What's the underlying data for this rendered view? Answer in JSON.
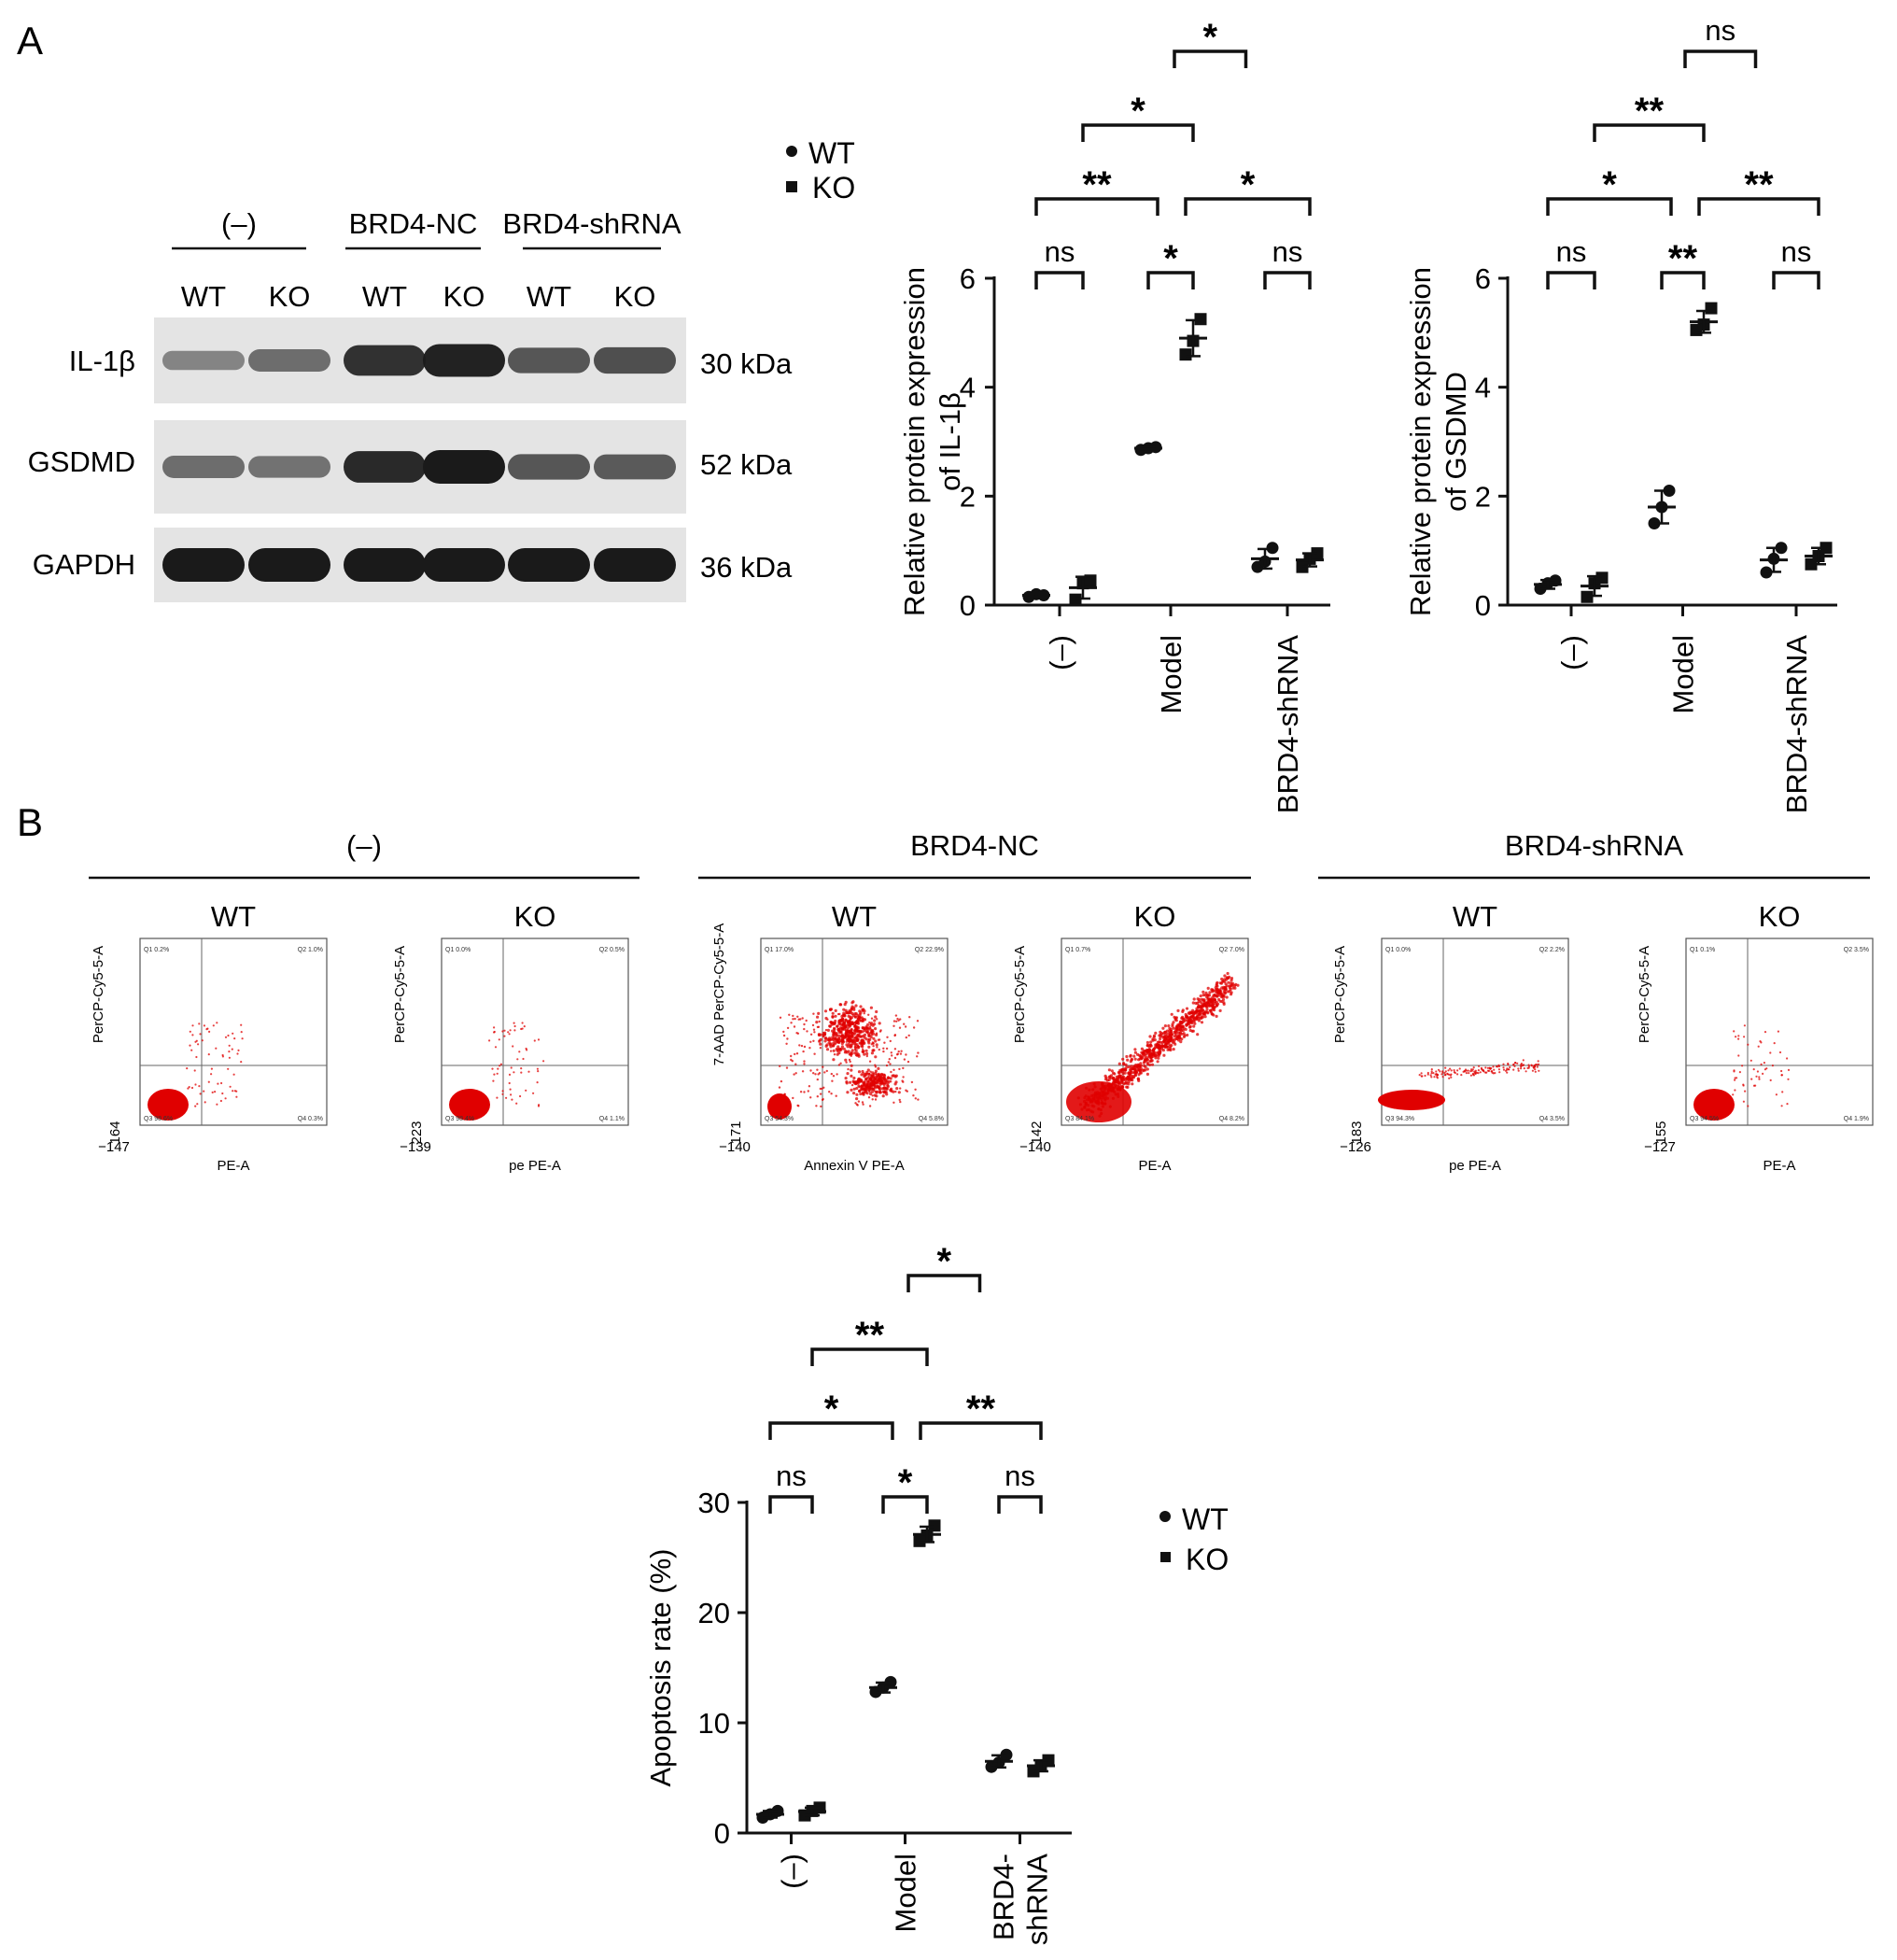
{
  "panel_labels": {
    "a": "A",
    "b": "B"
  },
  "western_blot": {
    "groups": [
      "(–)",
      "BRD4-NC",
      "BRD4-shRNA"
    ],
    "lanes": [
      "WT",
      "KO",
      "WT",
      "KO",
      "WT",
      "KO"
    ],
    "proteins": [
      {
        "name": "IL-1β",
        "kda": "30 kDa",
        "intensity": [
          0.3,
          0.45,
          0.85,
          0.95,
          0.6,
          0.65
        ]
      },
      {
        "name": "GSDMD",
        "kda": "52 kDa",
        "intensity": [
          0.45,
          0.42,
          0.9,
          1.0,
          0.6,
          0.58
        ]
      },
      {
        "name": "GAPDH",
        "kda": "36 kDa",
        "intensity": [
          1.0,
          1.0,
          1.0,
          1.0,
          1.0,
          1.0
        ]
      }
    ]
  },
  "legend_a": {
    "wt": "WT",
    "ko": "KO"
  },
  "legend_b": {
    "wt": "WT",
    "ko": "KO"
  },
  "chart_data": [
    {
      "type": "scatter",
      "title": "",
      "ylabel": "Relative protein expression of IL-1β",
      "ylabel_lines": [
        "Relative protein expression",
        "of IL-1β"
      ],
      "categories": [
        "(–)",
        "Model",
        "BRD4-shRNA"
      ],
      "ylim": [
        0,
        6
      ],
      "yticks": [
        "0",
        "2",
        "4",
        "6"
      ],
      "series": [
        {
          "name": "WT",
          "marker": "circle",
          "values": [
            [
              0.15,
              0.2,
              0.18
            ],
            [
              2.85,
              2.88,
              2.9
            ],
            [
              0.7,
              0.8,
              1.05
            ]
          ],
          "mean": [
            0.18,
            2.88,
            0.85
          ],
          "sd": [
            0.03,
            0.02,
            0.18
          ]
        },
        {
          "name": "KO",
          "marker": "square",
          "values": [
            [
              0.1,
              0.4,
              0.45
            ],
            [
              4.6,
              4.85,
              5.25
            ],
            [
              0.7,
              0.85,
              0.95
            ]
          ],
          "mean": [
            0.32,
            4.9,
            0.83
          ],
          "sd": [
            0.2,
            0.33,
            0.12
          ]
        }
      ],
      "significance": [
        {
          "label": "ns",
          "from": "(–)/WT",
          "to": "(–)/KO"
        },
        {
          "label": "*",
          "from": "Model/WT",
          "to": "Model/KO"
        },
        {
          "label": "ns",
          "from": "BRD4-shRNA/WT",
          "to": "BRD4-shRNA/KO"
        },
        {
          "label": "**",
          "from": "(–)/KO",
          "to": "Model/KO"
        },
        {
          "label": "*",
          "from": "Model/KO",
          "to": "BRD4-shRNA/KO"
        },
        {
          "label": "*",
          "from": "(–)/KO",
          "to": "Model/KO"
        },
        {
          "label": "*",
          "from": "Model/KO",
          "to": "BRD4-shRNA/KO"
        }
      ]
    },
    {
      "type": "scatter",
      "title": "",
      "ylabel": "Relative protein expression of GSDMD",
      "ylabel_lines": [
        "Relative protein expression",
        "of GSDMD"
      ],
      "categories": [
        "(–)",
        "Model",
        "BRD4-shRNA"
      ],
      "ylim": [
        0,
        6
      ],
      "yticks": [
        "0",
        "2",
        "4",
        "6"
      ],
      "series": [
        {
          "name": "WT",
          "marker": "circle",
          "values": [
            [
              0.3,
              0.4,
              0.45
            ],
            [
              1.5,
              1.8,
              2.1
            ],
            [
              0.6,
              0.85,
              1.05
            ]
          ],
          "mean": [
            0.38,
            1.8,
            0.83
          ],
          "sd": [
            0.08,
            0.3,
            0.22
          ]
        },
        {
          "name": "KO",
          "marker": "square",
          "values": [
            [
              0.15,
              0.4,
              0.5
            ],
            [
              5.05,
              5.15,
              5.45
            ],
            [
              0.75,
              0.9,
              1.05
            ]
          ],
          "mean": [
            0.35,
            5.2,
            0.9
          ],
          "sd": [
            0.18,
            0.2,
            0.15
          ]
        }
      ],
      "significance": [
        {
          "label": "ns",
          "from": "(–)/WT",
          "to": "(–)/KO"
        },
        {
          "label": "**",
          "from": "Model/WT",
          "to": "Model/KO"
        },
        {
          "label": "ns",
          "from": "BRD4-shRNA/WT",
          "to": "BRD4-shRNA/KO"
        },
        {
          "label": "*",
          "from": "(–)/KO",
          "to": "Model/KO"
        },
        {
          "label": "**",
          "from": "Model/KO",
          "to": "BRD4-shRNA/KO"
        },
        {
          "label": "**",
          "from": "(–)/KO",
          "to": "Model/KO"
        },
        {
          "label": "ns",
          "from": "Model/KO",
          "to": "BRD4-shRNA/KO"
        }
      ]
    },
    {
      "type": "scatter",
      "title": "",
      "ylabel": "Apoptosis rate (%)",
      "categories": [
        "(–)",
        "Model",
        "BRD4-shRNA"
      ],
      "category_lines": [
        [
          "(–)"
        ],
        [
          "Model"
        ],
        [
          "BRD4-",
          "shRNA"
        ]
      ],
      "ylim": [
        0,
        30
      ],
      "yticks": [
        "0",
        "10",
        "20",
        "30"
      ],
      "series": [
        {
          "name": "WT",
          "marker": "circle",
          "values": [
            [
              1.4,
              1.7,
              2.0
            ],
            [
              12.8,
              13.2,
              13.7
            ],
            [
              6.0,
              6.4,
              7.1
            ]
          ],
          "mean": [
            1.7,
            13.2,
            6.5
          ],
          "sd": [
            0.3,
            0.45,
            0.55
          ]
        },
        {
          "name": "KO",
          "marker": "square",
          "values": [
            [
              1.6,
              2.0,
              2.3
            ],
            [
              26.5,
              27.0,
              27.9
            ],
            [
              5.6,
              6.1,
              6.6
            ]
          ],
          "mean": [
            1.95,
            27.1,
            6.1
          ],
          "sd": [
            0.35,
            0.7,
            0.5
          ]
        }
      ],
      "significance": [
        {
          "label": "ns",
          "from": "(–)/WT",
          "to": "(–)/KO"
        },
        {
          "label": "*",
          "from": "Model/WT",
          "to": "Model/KO"
        },
        {
          "label": "ns",
          "from": "BRD4-shRNA/WT",
          "to": "BRD4-shRNA/KO"
        },
        {
          "label": "*",
          "from": "(–)/KO",
          "to": "Model/KO"
        },
        {
          "label": "**",
          "from": "Model/KO",
          "to": "BRD4-shRNA/KO"
        },
        {
          "label": "**",
          "from": "(–)/KO",
          "to": "Model/KO"
        },
        {
          "label": "*",
          "from": "Model/KO",
          "to": "BRD4-shRNA/KO"
        }
      ]
    }
  ],
  "flow": {
    "groups": [
      "(–)",
      "BRD4-NC",
      "BRD4-shRNA"
    ],
    "plots": [
      {
        "label": "WT",
        "ylabel": "PerCP-Cy5-5-A",
        "xlabel": "PE-A",
        "xmin": "−147",
        "ymin": "164",
        "quads": [
          "Q1 0.2%",
          "Q2 1.0%",
          "Q3 98.6%",
          "Q4 0.3%"
        ],
        "shape": "tight"
      },
      {
        "label": "KO",
        "ylabel": "PerCP-Cy5-5-A",
        "xlabel": "pe PE-A",
        "xmin": "−139",
        "ymin": "223",
        "quads": [
          "Q1 0.0%",
          "Q2 0.5%",
          "Q3 98.4%",
          "Q4 1.1%"
        ],
        "shape": "tight"
      },
      {
        "label": "WT",
        "ylabel": "7-AAD PerCP-Cy5-5-A",
        "xlabel": "Annexin V PE-A",
        "xmin": "−140",
        "ymin": "171",
        "quads": [
          "Q1 17.0%",
          "Q2 22.9%",
          "Q3 54.3%",
          "Q4 5.8%"
        ],
        "shape": "spread"
      },
      {
        "label": "KO",
        "ylabel": "PerCP-Cy5-5-A",
        "xlabel": "PE-A",
        "xmin": "−140",
        "ymin": "142",
        "quads": [
          "Q1 0.7%",
          "Q2 7.0%",
          "Q3 84.1%",
          "Q4 8.2%"
        ],
        "shape": "diagonal"
      },
      {
        "label": "WT",
        "ylabel": "PerCP-Cy5-5-A",
        "xlabel": "pe PE-A",
        "xmin": "−126",
        "ymin": "183",
        "quads": [
          "Q1 0.0%",
          "Q2 2.2%",
          "Q3 94.3%",
          "Q4 3.5%"
        ],
        "shape": "streak"
      },
      {
        "label": "KO",
        "ylabel": "PerCP-Cy5-5-A",
        "xlabel": "PE-A",
        "xmin": "−127",
        "ymin": "155",
        "quads": [
          "Q1 0.1%",
          "Q2 3.5%",
          "Q3 94.5%",
          "Q4 1.9%"
        ],
        "shape": "tight"
      }
    ]
  },
  "colors": {
    "dot": "#e00000",
    "ink": "#111111",
    "blot_bg": "#e4e4e4",
    "band": "#1a1a1a"
  }
}
